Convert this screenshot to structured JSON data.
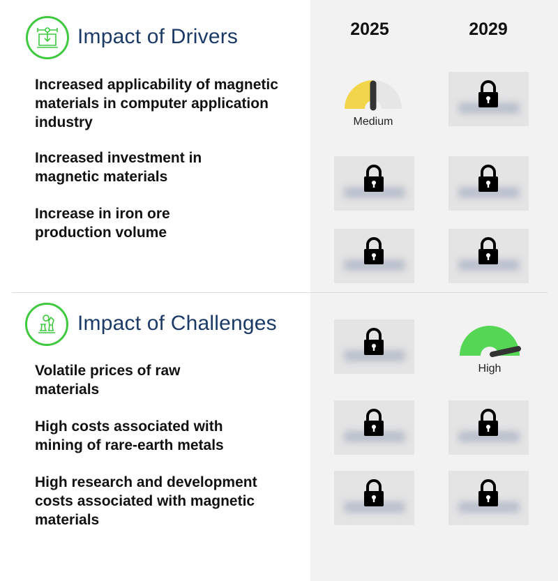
{
  "years": [
    "2025",
    "2029"
  ],
  "drivers": {
    "title": "Impact of Drivers",
    "icon": "monitor-download-icon",
    "items": [
      {
        "label": "Increased applicability of magnetic materials in computer application industry",
        "impact_2025": "Medium",
        "impact_2029": "locked"
      },
      {
        "label": "Increased investment in magnetic materials",
        "impact_2025": "locked",
        "impact_2029": "locked"
      },
      {
        "label": "Increase in iron ore production volume",
        "impact_2025": "locked",
        "impact_2029": "locked"
      }
    ]
  },
  "challenges": {
    "title": "Impact of Challenges",
    "icon": "chess-pieces-icon",
    "items": [
      {
        "label": "Volatile prices of raw materials",
        "impact_2025": "locked",
        "impact_2029": "High"
      },
      {
        "label": "High costs associated with mining of rare-earth metals",
        "impact_2025": "locked",
        "impact_2029": "locked"
      },
      {
        "label": "High research and development costs associated with magnetic materials",
        "impact_2025": "locked",
        "impact_2029": "locked"
      }
    ]
  },
  "colors": {
    "medium": "#f2d54a",
    "high": "#55d655",
    "accent": "#3ec93e",
    "title": "#1b3a66"
  }
}
